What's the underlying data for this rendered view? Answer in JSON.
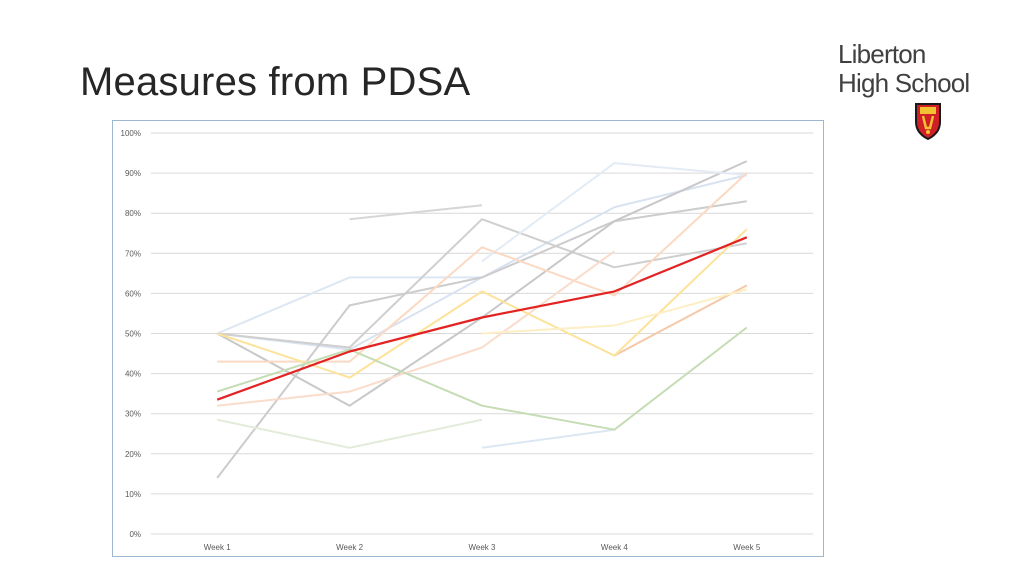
{
  "slide": {
    "title": "Measures from PDSA"
  },
  "logo": {
    "line1": "Liberton",
    "line2": "High School",
    "crest_icon": "school-crest-shield-icon"
  },
  "chart_data": {
    "type": "line",
    "categories": [
      "Week 1",
      "Week 2",
      "Week 3",
      "Week 4",
      "Week 5"
    ],
    "y_ticks": [
      "0%",
      "10%",
      "20%",
      "30%",
      "40%",
      "50%",
      "60%",
      "70%",
      "80%",
      "90%",
      "100%"
    ],
    "ylim": [
      0,
      100
    ],
    "y_format": "percent",
    "grid": true,
    "legend": "none",
    "title": "",
    "xlabel": "",
    "ylabel": "",
    "series": [
      {
        "values": [
          50,
          64,
          64,
          null,
          null
        ],
        "color": "#dce7f3"
      },
      {
        "values": [
          null,
          78.5,
          82,
          null,
          null
        ],
        "color": "#d6d6d6"
      },
      {
        "values": [
          null,
          null,
          21.5,
          26,
          null
        ],
        "color": "#dce7f3"
      },
      {
        "values": [
          50,
          46,
          64,
          81.5,
          89.5
        ],
        "color": "#d9e2f1"
      },
      {
        "values": [
          50,
          46.5,
          78.5,
          66.5,
          72.5
        ],
        "color": "#cfcfcf"
      },
      {
        "values": [
          14,
          57,
          64,
          78,
          83
        ],
        "color": "#cccccc"
      },
      {
        "values": [
          50,
          32,
          54,
          78,
          93
        ],
        "color": "#c8c8c8"
      },
      {
        "values": [
          null,
          null,
          68,
          92.5,
          89.5
        ],
        "color": "#e3ebf5"
      },
      {
        "values": [
          43,
          43,
          71.5,
          59.5,
          90
        ],
        "color": "#fbd9c3"
      },
      {
        "values": [
          32,
          35.5,
          46.5,
          70.5,
          null
        ],
        "color": "#f9dccb"
      },
      {
        "values": [
          null,
          null,
          null,
          44.5,
          62
        ],
        "color": "#f4c8a8"
      },
      {
        "values": [
          50,
          39,
          60.5,
          44.5,
          76
        ],
        "color": "#fde29a"
      },
      {
        "values": [
          null,
          null,
          50,
          52,
          61
        ],
        "color": "#fdeec5"
      },
      {
        "values": [
          35.5,
          46,
          32,
          26,
          51.5
        ],
        "color": "#c5dcb5"
      },
      {
        "values": [
          28.5,
          21.5,
          28.5,
          null,
          null
        ],
        "color": "#e2ecd8"
      },
      {
        "values": [
          33.5,
          45.5,
          54,
          60.5,
          74
        ],
        "color": "#e32222"
      }
    ]
  }
}
